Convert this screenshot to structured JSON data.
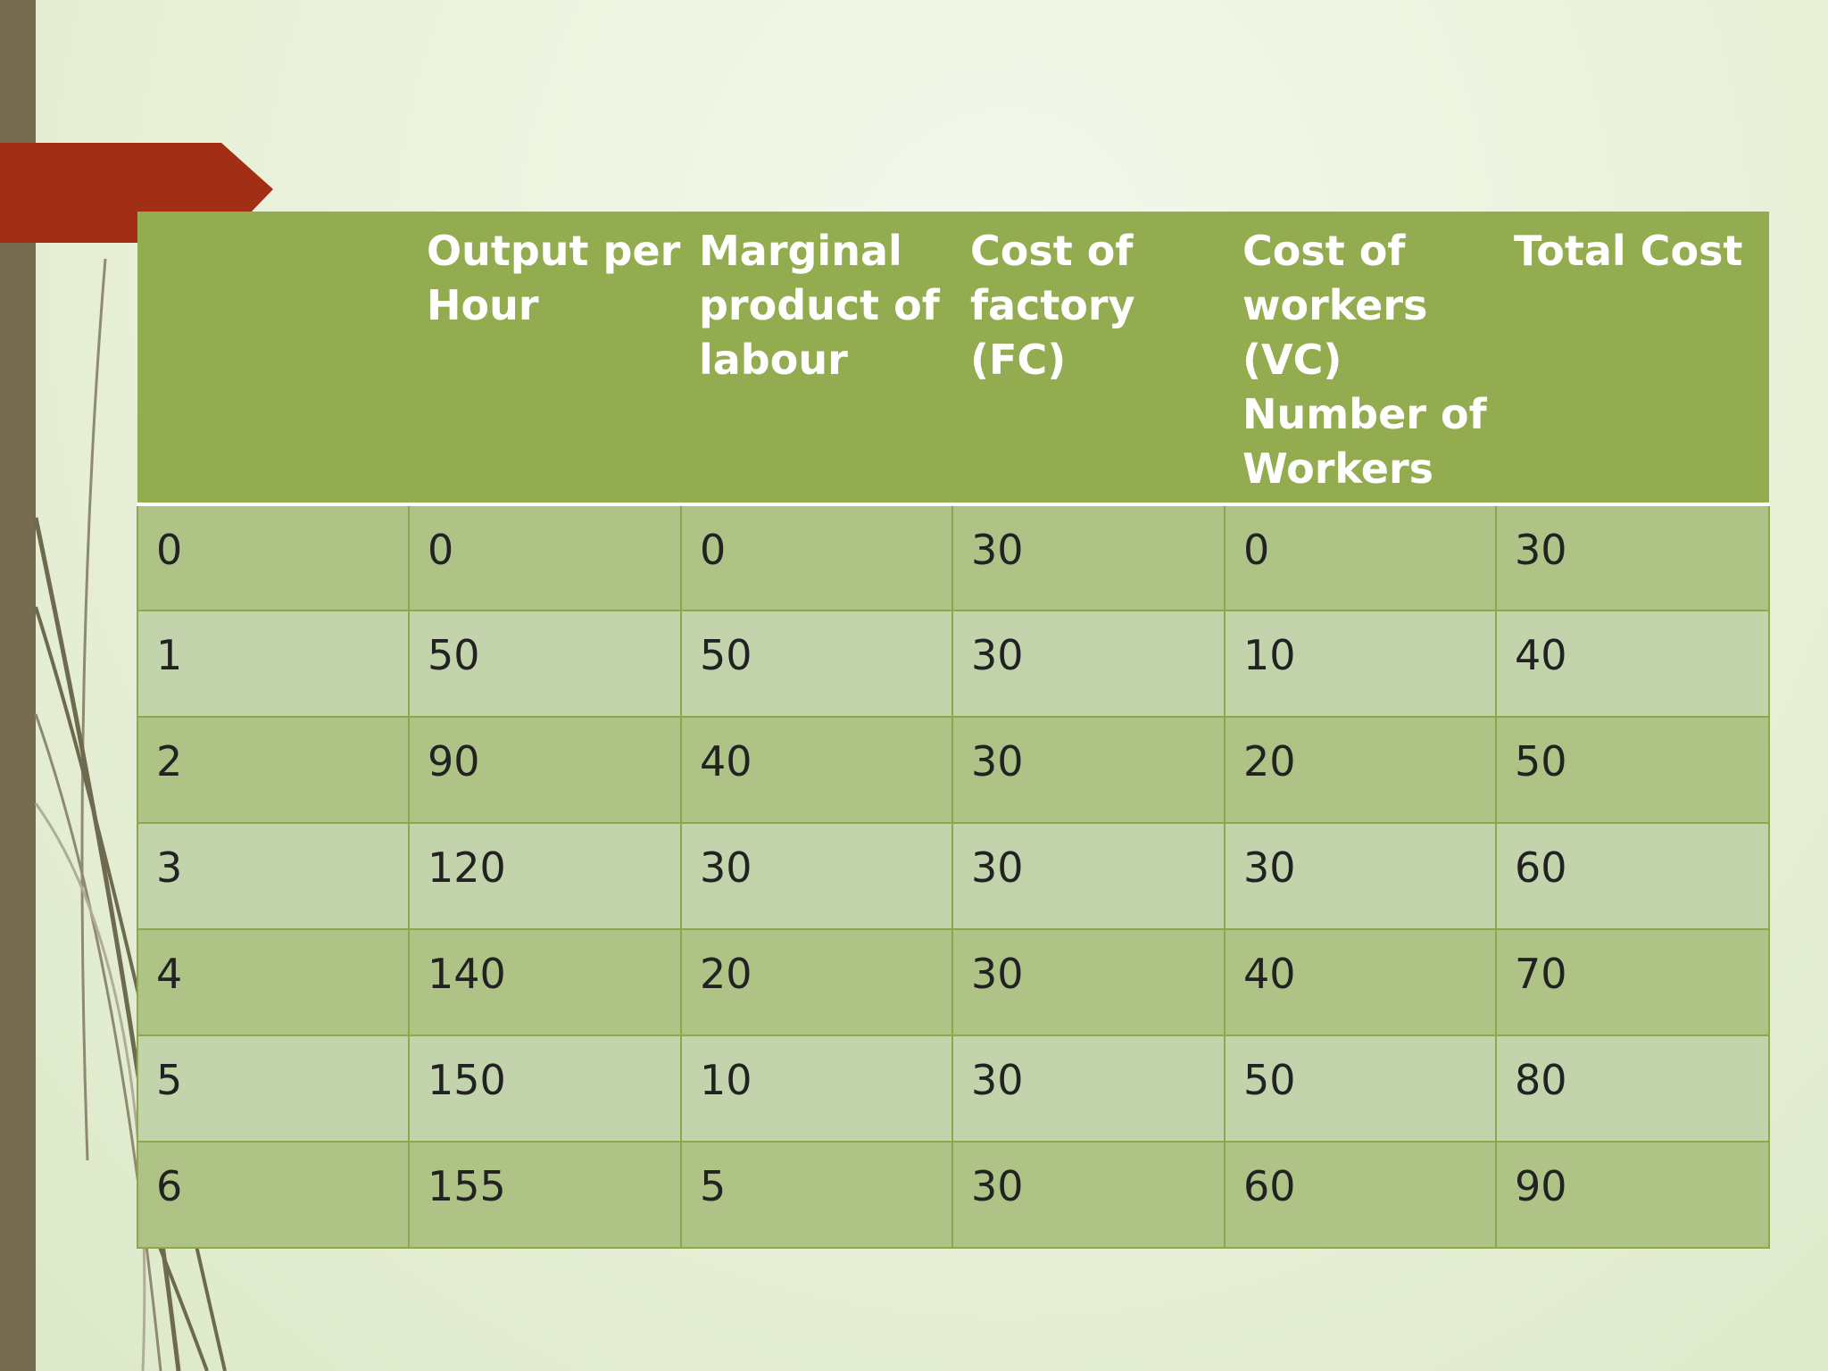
{
  "table": {
    "headers": [
      "",
      "Output per Hour",
      "Marginal product of labour",
      "Cost of factory (FC)",
      "Cost of workers (VC) Number of Workers",
      "Total Cost"
    ],
    "rows": [
      [
        "0",
        "0",
        "0",
        "30",
        "0",
        "30"
      ],
      [
        "1",
        "50",
        "50",
        "30",
        "10",
        "40"
      ],
      [
        "2",
        "90",
        "40",
        "30",
        "20",
        "50"
      ],
      [
        "3",
        "120",
        "30",
        "30",
        "30",
        "60"
      ],
      [
        "4",
        "140",
        "20",
        "30",
        "40",
        "70"
      ],
      [
        "5",
        "150",
        "10",
        "30",
        "50",
        "80"
      ],
      [
        "6",
        "155",
        "5",
        "30",
        "60",
        "90"
      ]
    ]
  },
  "colors": {
    "header_bg": "#93ac4f",
    "row_dark": "#b0c387",
    "row_light": "#c3d3ab",
    "accent_red": "#a32e16",
    "left_bar": "#756c52"
  }
}
